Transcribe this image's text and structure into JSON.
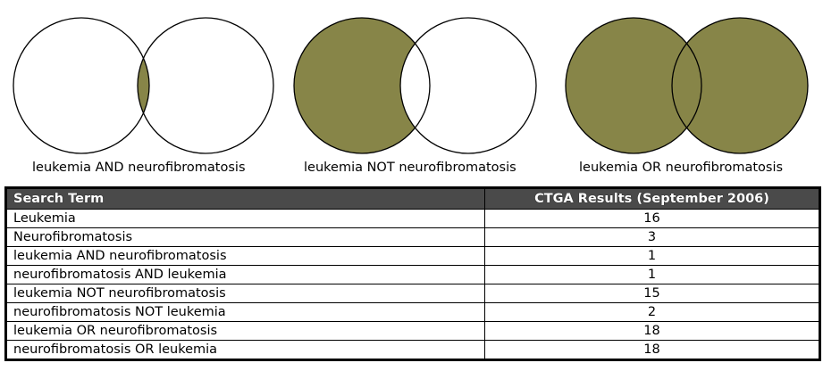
{
  "colors": {
    "fill": "#878548",
    "stroke": "#000000",
    "header_bg": "#4a4a4a",
    "header_text": "#ffffff"
  },
  "venn": [
    {
      "caption": "leukemia AND neurofibromatosis",
      "mode": "and"
    },
    {
      "caption": "leukemia NOT neurofibromatosis",
      "mode": "not"
    },
    {
      "caption": "leukemia OR neurofibromatosis",
      "mode": "or"
    }
  ],
  "table": {
    "headers": {
      "term": "Search Term",
      "results": "CTGA Results (September 2006)"
    },
    "rows": [
      {
        "term": "Leukemia",
        "count": "16"
      },
      {
        "term": "Neurofibromatosis",
        "count": "3"
      },
      {
        "term": "leukemia AND neurofibromatosis",
        "count": "1"
      },
      {
        "term": "neurofibromatosis AND leukemia",
        "count": "1"
      },
      {
        "term": "leukemia NOT neurofibromatosis",
        "count": "15"
      },
      {
        "term": "neurofibromatosis NOT leukemia",
        "count": "2"
      },
      {
        "term": "leukemia OR neurofibromatosis",
        "count": "18"
      },
      {
        "term": "neurofibromatosis OR leukemia",
        "count": "18"
      }
    ]
  }
}
